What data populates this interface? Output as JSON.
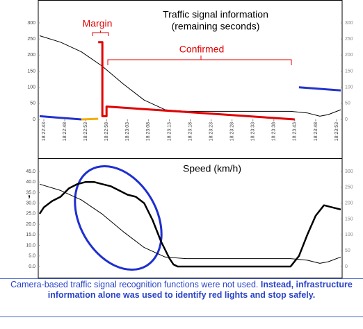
{
  "chart_data": [
    {
      "type": "line",
      "title": "Traffic signal information",
      "subtitle": "(remaining seconds)",
      "annotations": [
        "Margin",
        "Confirmed"
      ],
      "xlim": [
        "18:22:42",
        "18:23:54"
      ],
      "xticks": [
        "18:22:43",
        "18:22:48",
        "18:22:53",
        "18:22:58",
        "18:23:03",
        "18:23:08",
        "18:23:13",
        "18:23:18",
        "18:23:23",
        "18:23:28",
        "18:23:33",
        "18:23:38",
        "18:23:43",
        "18:23:48",
        "18:23:53"
      ],
      "ylim": [
        0,
        300
      ],
      "yticks": [
        0,
        50,
        100,
        150,
        200,
        250,
        300
      ],
      "y2lim": [
        0,
        300
      ],
      "y2ticks": [
        0,
        50,
        100,
        150,
        200,
        250,
        300
      ],
      "series": [
        {
          "color": "#000000",
          "axis": "y2",
          "width": 1,
          "x": [
            "18:22:42",
            "18:22:47",
            "18:22:52",
            "18:22:57",
            "18:23:02",
            "18:23:07",
            "18:23:12",
            "18:23:17",
            "18:23:22",
            "18:23:27",
            "18:23:32",
            "18:23:37",
            "18:23:42",
            "18:23:46",
            "18:23:49",
            "18:23:51",
            "18:23:54"
          ],
          "values": [
            260,
            240,
            210,
            165,
            110,
            60,
            30,
            25,
            25,
            25,
            25,
            25,
            25,
            20,
            10,
            15,
            30
          ]
        },
        {
          "color": "#2233cc",
          "width": 3,
          "x": [
            "18:22:42",
            "18:22:47",
            "18:22:52"
          ],
          "values": [
            10,
            5,
            0
          ]
        },
        {
          "color": "#f0b000",
          "width": 3,
          "x": [
            "18:22:52",
            "18:22:56"
          ],
          "values": [
            0,
            2
          ]
        },
        {
          "color": "#e00000",
          "width": 3,
          "x": [
            "18:22:56",
            "18:22:57",
            "18:22:57",
            "18:22:58",
            "18:22:58",
            "18:23:43"
          ],
          "values": [
            240,
            240,
            10,
            10,
            40,
            0
          ]
        },
        {
          "color": "#2233cc",
          "width": 3,
          "x": [
            "18:23:44",
            "18:23:54"
          ],
          "values": [
            100,
            90
          ]
        }
      ]
    },
    {
      "type": "line",
      "title": "Speed (km/h)",
      "xlim": [
        "18:22:42",
        "18:23:54"
      ],
      "ylim": [
        0,
        45
      ],
      "yticks": [
        {
          "value": 0,
          "label": "0.0"
        },
        {
          "value": 5,
          "label": "5.0"
        },
        {
          "value": 10,
          "label": "10.0"
        },
        {
          "value": 15,
          "label": "15.0"
        },
        {
          "value": 20,
          "label": "20.0"
        },
        {
          "value": 25,
          "label": "25.0"
        },
        {
          "value": 30,
          "label": "30.0"
        },
        {
          "value": 35,
          "label": "35.0"
        },
        {
          "value": 40,
          "label": "40.0"
        },
        {
          "value": 45,
          "label": "45.0"
        }
      ],
      "y2lim": [
        0,
        300
      ],
      "y2ticks": [
        0,
        50,
        100,
        150,
        200,
        250,
        300
      ],
      "series": [
        {
          "color": "#000000",
          "axis": "y2",
          "width": 1,
          "x": [
            "18:22:42",
            "18:22:47",
            "18:22:52",
            "18:22:57",
            "18:23:02",
            "18:23:07",
            "18:23:12",
            "18:23:17",
            "18:23:22",
            "18:23:27",
            "18:23:32",
            "18:23:37",
            "18:23:42",
            "18:23:46",
            "18:23:49",
            "18:23:51",
            "18:23:54"
          ],
          "values": [
            260,
            240,
            210,
            165,
            110,
            60,
            30,
            25,
            25,
            25,
            25,
            25,
            25,
            20,
            10,
            15,
            30
          ]
        },
        {
          "color": "#000000",
          "width": 2.5,
          "x": [
            "18:22:42",
            "18:22:43",
            "18:22:45",
            "18:22:47",
            "18:22:49",
            "18:22:51",
            "18:22:53",
            "18:22:55",
            "18:22:57",
            "18:22:59",
            "18:23:01",
            "18:23:03",
            "18:23:05",
            "18:23:07",
            "18:23:09",
            "18:23:11",
            "18:23:13",
            "18:23:14",
            "18:23:15",
            "18:23:42",
            "18:23:44",
            "18:23:46",
            "18:23:48",
            "18:23:50",
            "18:23:52",
            "18:23:54"
          ],
          "values": [
            25,
            28,
            31,
            33,
            37,
            39,
            40,
            40,
            39,
            38,
            36,
            34,
            33,
            30,
            22,
            12,
            4,
            1,
            0,
            0,
            5,
            15,
            24,
            29,
            28,
            27
          ]
        }
      ]
    }
  ],
  "stray_mark": ",",
  "caption": {
    "text": "Camera-based traffic signal recognition functions were not used. ",
    "bold": "Instead, infrastructure information alone was used to identify red lights and stop safely."
  }
}
